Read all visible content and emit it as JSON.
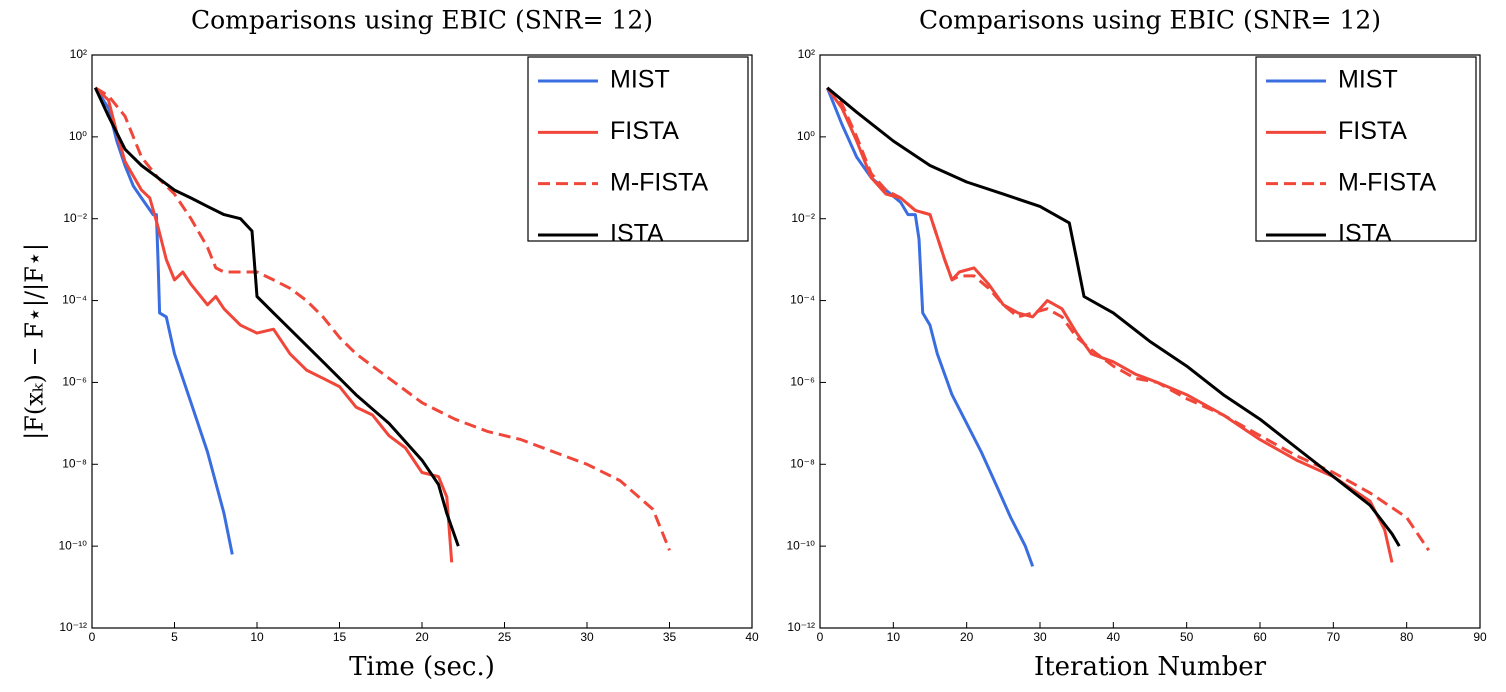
{
  "chart_data": [
    {
      "type": "line",
      "title": "Comparisons using EBIC (SNR= 12)",
      "xlabel": "Time (sec.)",
      "ylabel": "|F(xₖ) − F⋆|/|F⋆|",
      "xlim": [
        0,
        40
      ],
      "xticks": [
        0,
        5,
        10,
        15,
        20,
        25,
        30,
        35,
        40
      ],
      "ylim": [
        1e-12,
        100
      ],
      "yscale": "log",
      "yticks": [
        {
          "value": 1e-12,
          "label": "10⁻¹²"
        },
        {
          "value": 1e-10,
          "label": "10⁻¹⁰"
        },
        {
          "value": 1e-08,
          "label": "10⁻⁸"
        },
        {
          "value": 1e-06,
          "label": "10⁻⁶"
        },
        {
          "value": 0.0001,
          "label": "10⁻⁴"
        },
        {
          "value": 0.01,
          "label": "10⁻²"
        },
        {
          "value": 1,
          "label": "10⁰"
        },
        {
          "value": 100,
          "label": "10²"
        }
      ],
      "legend": "upper right",
      "series": [
        {
          "name": "MIST",
          "color": "#3a6ee0",
          "dash": false,
          "x": [
            0.2,
            1,
            1.5,
            2,
            2.5,
            3,
            3.7,
            3.9,
            4.0,
            4.1,
            4.5,
            5,
            6,
            7,
            8,
            8.5
          ],
          "values": [
            15.8,
            5.0,
            0.79,
            0.2,
            0.063,
            0.032,
            0.0126,
            0.0126,
            0.001,
            5e-05,
            4e-05,
            5e-06,
            3.2e-07,
            2e-08,
            6.3e-10,
            6.3e-11
          ]
        },
        {
          "name": "FISTA",
          "color": "#f0473a",
          "dash": false,
          "x": [
            0.2,
            1,
            1.5,
            2,
            3,
            3.5,
            4,
            4.5,
            5,
            5.5,
            6,
            7,
            7.5,
            8,
            9,
            10,
            11,
            12,
            13,
            14,
            15,
            16,
            17,
            18,
            19,
            20,
            21,
            21.5,
            21.8
          ],
          "values": [
            15.8,
            7.9,
            1.26,
            0.25,
            0.05,
            0.032,
            0.0063,
            0.001,
            0.00032,
            0.0005,
            0.00025,
            7.9e-05,
            0.000126,
            6.3e-05,
            2.5e-05,
            1.6e-05,
            2e-05,
            5e-06,
            2e-06,
            1.26e-06,
            7.9e-07,
            2.5e-07,
            1.6e-07,
            5e-08,
            2.5e-08,
            6.3e-09,
            5e-09,
            1.6e-09,
            4e-11
          ]
        },
        {
          "name": "M-FISTA",
          "color": "#f0473a",
          "dash": true,
          "x": [
            0.2,
            1,
            2,
            3,
            4,
            5,
            6,
            7,
            7.5,
            8,
            10,
            11,
            12,
            13,
            14,
            15,
            16,
            18,
            20,
            22,
            24,
            26,
            28,
            30,
            32,
            34,
            35
          ],
          "values": [
            15.8,
            10,
            3.2,
            0.32,
            0.1,
            0.04,
            0.01,
            0.002,
            0.00063,
            0.0005,
            0.0005,
            0.00032,
            0.0002,
            0.0001,
            4e-05,
            1.26e-05,
            5e-06,
            1.26e-06,
            3.2e-07,
            1.26e-07,
            6.3e-08,
            4e-08,
            2e-08,
            1e-08,
            4e-09,
            7.9e-10,
            7.9e-11
          ]
        },
        {
          "name": "ISTA",
          "color": "#000000",
          "dash": false,
          "x": [
            0.2,
            1,
            2,
            3,
            4,
            5,
            6,
            7,
            8,
            9,
            9.7,
            10,
            11,
            12,
            14,
            16,
            18,
            20,
            21,
            21.5,
            22.2
          ],
          "values": [
            15.8,
            3.2,
            0.5,
            0.2,
            0.1,
            0.05,
            0.032,
            0.02,
            0.0126,
            0.01,
            0.005,
            0.000126,
            5e-05,
            2e-05,
            3.2e-06,
            5e-07,
            1e-07,
            1.26e-08,
            3.2e-09,
            6.3e-10,
            1e-10
          ]
        }
      ]
    },
    {
      "type": "line",
      "title": "Comparisons using EBIC (SNR= 12)",
      "xlabel": "Iteration Number",
      "xlim": [
        0,
        90
      ],
      "xticks": [
        0,
        10,
        20,
        30,
        40,
        50,
        60,
        70,
        80,
        90
      ],
      "ylim": [
        1e-12,
        100
      ],
      "yscale": "log",
      "yticks": [
        {
          "value": 1e-12,
          "label": "10⁻¹²"
        },
        {
          "value": 1e-10,
          "label": "10⁻¹⁰"
        },
        {
          "value": 1e-08,
          "label": "10⁻⁸"
        },
        {
          "value": 1e-06,
          "label": "10⁻⁶"
        },
        {
          "value": 0.0001,
          "label": "10⁻⁴"
        },
        {
          "value": 0.01,
          "label": "10⁻²"
        },
        {
          "value": 1,
          "label": "10⁰"
        },
        {
          "value": 100,
          "label": "10²"
        }
      ],
      "legend": "upper right",
      "series": [
        {
          "name": "MIST",
          "color": "#3a6ee0",
          "dash": false,
          "x": [
            1,
            3,
            5,
            7,
            9,
            11,
            12,
            13,
            13.5,
            14,
            15,
            16,
            18,
            20,
            22,
            24,
            26,
            28,
            29
          ],
          "values": [
            15.8,
            2,
            0.32,
            0.1,
            0.05,
            0.025,
            0.0126,
            0.0126,
            0.0032,
            5e-05,
            2.5e-05,
            5e-06,
            5e-07,
            1e-07,
            2e-08,
            3.2e-09,
            5e-10,
            1e-10,
            3.2e-11
          ]
        },
        {
          "name": "FISTA",
          "color": "#f0473a",
          "dash": false,
          "x": [
            1,
            3,
            5,
            7,
            9,
            11,
            13,
            15,
            17,
            18,
            19,
            21,
            23,
            25,
            27,
            29,
            31,
            33,
            35,
            37,
            40,
            43,
            46,
            50,
            55,
            60,
            65,
            70,
            75,
            77,
            78
          ],
          "values": [
            15.8,
            5,
            0.79,
            0.1,
            0.04,
            0.032,
            0.016,
            0.0126,
            0.001,
            0.00032,
            0.0005,
            0.00063,
            0.00025,
            7.9e-05,
            5e-05,
            4e-05,
            0.0001,
            6.3e-05,
            1.6e-05,
            5e-06,
            3.2e-06,
            1.6e-06,
            1e-06,
            5e-07,
            1.6e-07,
            4e-08,
            1.26e-08,
            5e-09,
            1.26e-09,
            2.5e-10,
            4e-11
          ]
        },
        {
          "name": "M-FISTA",
          "color": "#f0473a",
          "dash": true,
          "x": [
            1,
            3,
            5,
            7,
            9,
            11,
            13,
            15,
            17,
            18,
            19,
            21,
            23,
            25,
            27,
            29,
            31,
            33,
            35,
            37,
            40,
            43,
            46,
            50,
            55,
            60,
            65,
            70,
            75,
            80,
            83
          ],
          "values": [
            15.8,
            6.3,
            1,
            0.126,
            0.05,
            0.032,
            0.016,
            0.0126,
            0.001,
            0.00032,
            0.0004,
            0.0004,
            0.0002,
            7.9e-05,
            4e-05,
            5e-05,
            6.3e-05,
            4e-05,
            1.26e-05,
            6.3e-06,
            2.5e-06,
            1.26e-06,
            1e-06,
            4e-07,
            1.6e-07,
            5e-08,
            1.6e-08,
            6.3e-09,
            2e-09,
            5e-10,
            7.9e-11
          ]
        },
        {
          "name": "ISTA",
          "color": "#000000",
          "dash": false,
          "x": [
            1,
            5,
            10,
            15,
            20,
            25,
            30,
            34,
            35,
            36,
            40,
            45,
            50,
            55,
            60,
            65,
            70,
            75,
            78,
            79
          ],
          "values": [
            15.8,
            4,
            0.79,
            0.2,
            0.079,
            0.04,
            0.02,
            0.0079,
            0.001,
            0.000126,
            5e-05,
            1e-05,
            2.5e-06,
            5e-07,
            1.26e-07,
            2.5e-08,
            5e-09,
            1e-09,
            2e-10,
            1e-10
          ]
        }
      ]
    }
  ]
}
